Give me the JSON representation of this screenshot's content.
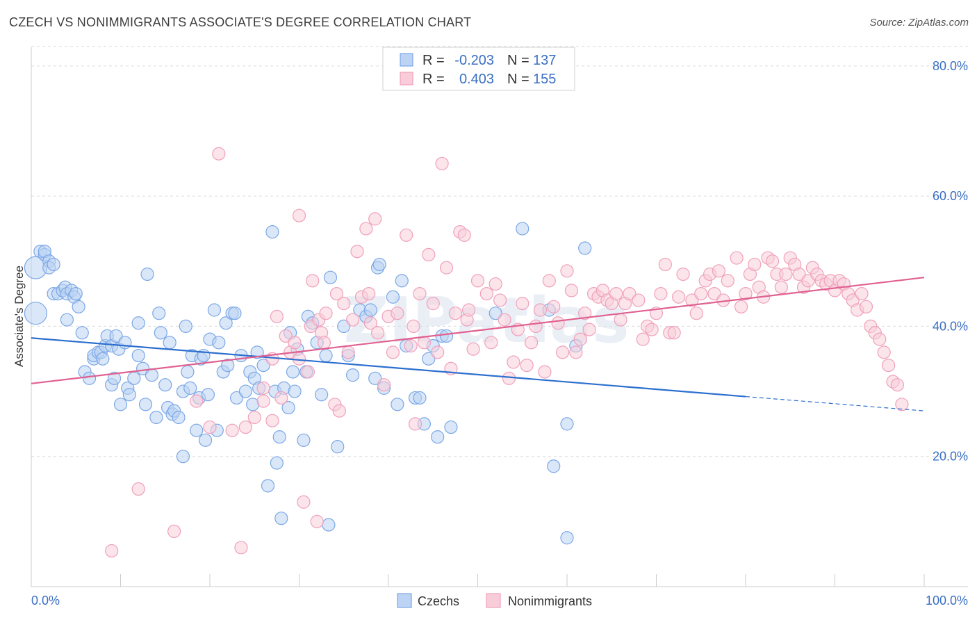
{
  "title": "CZECH VS NONIMMIGRANTS ASSOCIATE'S DEGREE CORRELATION CHART",
  "source": "Source: ZipAtlas.com",
  "watermark": "ZIPatlas",
  "chart_data": {
    "type": "scatter",
    "ylabel": "Associate's Degree",
    "xlim": [
      0,
      100
    ],
    "ylim": [
      0,
      85
    ],
    "x_tick_labels": [
      "0.0%",
      "100.0%"
    ],
    "y_ticks": [
      20,
      40,
      60,
      80
    ],
    "y_tick_labels": [
      "20.0%",
      "40.0%",
      "60.0%",
      "80.0%"
    ],
    "grid": "horizontal dashed",
    "legend": {
      "position": "top-center",
      "rows": [
        {
          "r_label": "R =",
          "r_value": "-0.203",
          "n_label": "N =",
          "n_value": "137"
        },
        {
          "r_label": "R =",
          "r_value": "0.403",
          "n_label": "N =",
          "n_value": "155"
        }
      ]
    },
    "series": [
      {
        "name": "Czechs",
        "color": "#7ba7e6",
        "fill": "#bcd3f3",
        "trend": {
          "x0": 0,
          "y0": 38.2,
          "x1": 80,
          "y1": 29.2,
          "dash_to_x": 100,
          "dash_to_y": 27.0,
          "color": "#2c6fcf"
        },
        "points": [
          [
            0.5,
            42
          ],
          [
            0.5,
            49
          ],
          [
            1,
            51.5
          ],
          [
            1.5,
            51
          ],
          [
            1.5,
            51.5
          ],
          [
            2,
            50
          ],
          [
            2,
            49
          ],
          [
            2.5,
            45
          ],
          [
            2.5,
            49.5
          ],
          [
            3,
            45
          ],
          [
            3.5,
            45.5
          ],
          [
            3.8,
            46
          ],
          [
            4,
            45
          ],
          [
            4.5,
            45.5
          ],
          [
            4.8,
            44.5
          ],
          [
            5,
            45
          ],
          [
            5.3,
            43
          ],
          [
            4,
            41
          ],
          [
            5.7,
            39
          ],
          [
            6,
            33
          ],
          [
            6.5,
            32
          ],
          [
            7,
            35
          ],
          [
            7,
            35.5
          ],
          [
            7.5,
            36
          ],
          [
            7.8,
            36
          ],
          [
            8,
            35
          ],
          [
            8.3,
            37
          ],
          [
            8.5,
            38.5
          ],
          [
            9,
            37
          ],
          [
            9,
            31
          ],
          [
            9.3,
            32
          ],
          [
            9.5,
            38.5
          ],
          [
            9.8,
            36.5
          ],
          [
            10,
            28
          ],
          [
            10.5,
            37.5
          ],
          [
            10.8,
            30.5
          ],
          [
            11,
            29.5
          ],
          [
            11.5,
            32
          ],
          [
            12,
            35.5
          ],
          [
            12,
            40.5
          ],
          [
            12.5,
            33.5
          ],
          [
            12.8,
            28
          ],
          [
            13,
            48
          ],
          [
            13.5,
            32.5
          ],
          [
            14,
            26
          ],
          [
            14.3,
            42
          ],
          [
            14.5,
            39
          ],
          [
            15,
            31
          ],
          [
            15.3,
            27.5
          ],
          [
            15.5,
            37.5
          ],
          [
            15.8,
            26.5
          ],
          [
            16,
            27
          ],
          [
            16.5,
            26
          ],
          [
            17,
            20
          ],
          [
            17,
            30
          ],
          [
            17.3,
            40
          ],
          [
            17.5,
            33
          ],
          [
            17.8,
            30.5
          ],
          [
            18,
            35.5
          ],
          [
            18.5,
            24
          ],
          [
            18.8,
            29
          ],
          [
            19,
            35
          ],
          [
            19.3,
            35.5
          ],
          [
            19.5,
            22.5
          ],
          [
            19.8,
            29.5
          ],
          [
            20,
            38
          ],
          [
            20.5,
            42.5
          ],
          [
            20.8,
            24
          ],
          [
            21,
            37.5
          ],
          [
            21.5,
            33
          ],
          [
            21.8,
            40.5
          ],
          [
            22,
            34
          ],
          [
            22.5,
            42
          ],
          [
            22.8,
            42
          ],
          [
            23,
            29
          ],
          [
            23.5,
            35.5
          ],
          [
            24,
            30
          ],
          [
            24.5,
            33
          ],
          [
            24.8,
            28
          ],
          [
            25,
            32
          ],
          [
            25.3,
            36
          ],
          [
            25.5,
            30.5
          ],
          [
            26,
            34
          ],
          [
            26.5,
            15.5
          ],
          [
            27,
            54.5
          ],
          [
            27.3,
            30
          ],
          [
            27.5,
            19
          ],
          [
            27.8,
            23
          ],
          [
            28,
            10.5
          ],
          [
            28.3,
            30.5
          ],
          [
            28.8,
            27.5
          ],
          [
            29,
            39
          ],
          [
            29.3,
            33
          ],
          [
            29.5,
            30
          ],
          [
            29.8,
            36.5
          ],
          [
            30.5,
            22.5
          ],
          [
            30.8,
            33
          ],
          [
            31,
            41.5
          ],
          [
            31.5,
            40.5
          ],
          [
            32,
            37.5
          ],
          [
            32.5,
            29.5
          ],
          [
            33,
            35.5
          ],
          [
            33.3,
            9.5
          ],
          [
            33.5,
            47.5
          ],
          [
            34.3,
            21.5
          ],
          [
            35,
            40
          ],
          [
            35.5,
            35.5
          ],
          [
            36,
            32.5
          ],
          [
            36.8,
            42.5
          ],
          [
            37.5,
            41.5
          ],
          [
            38,
            42.5
          ],
          [
            38.5,
            32
          ],
          [
            38.8,
            49
          ],
          [
            39,
            49.5
          ],
          [
            39.5,
            30.5
          ],
          [
            40.5,
            44.5
          ],
          [
            41,
            28
          ],
          [
            41.5,
            47
          ],
          [
            42,
            37
          ],
          [
            43,
            29
          ],
          [
            43.5,
            29
          ],
          [
            44,
            25
          ],
          [
            44.5,
            35
          ],
          [
            45,
            37
          ],
          [
            45.5,
            23
          ],
          [
            46,
            38.5
          ],
          [
            46.5,
            38.5
          ],
          [
            47,
            24.5
          ],
          [
            52,
            42
          ],
          [
            55,
            55
          ],
          [
            58,
            42.5
          ],
          [
            58.5,
            18.5
          ],
          [
            60,
            7.5
          ],
          [
            60,
            25
          ],
          [
            61,
            37
          ],
          [
            62,
            52
          ]
        ]
      },
      {
        "name": "Nonimmigrants",
        "color": "#f0a0bc",
        "fill": "#f8cdd9",
        "trend": {
          "x0": 0,
          "y0": 31.2,
          "x1": 100,
          "y1": 47.5,
          "color": "#e06090"
        },
        "points": [
          [
            9,
            5.5
          ],
          [
            12,
            15
          ],
          [
            16,
            8.5
          ],
          [
            18.5,
            28.5
          ],
          [
            20,
            24.5
          ],
          [
            21,
            66.5
          ],
          [
            22.5,
            24
          ],
          [
            23.5,
            6
          ],
          [
            24,
            24.5
          ],
          [
            25,
            26
          ],
          [
            26,
            28.5
          ],
          [
            26,
            30.5
          ],
          [
            27,
            25.5
          ],
          [
            27,
            35
          ],
          [
            28,
            29
          ],
          [
            27.5,
            41.5
          ],
          [
            28.5,
            38.5
          ],
          [
            29,
            36
          ],
          [
            29.5,
            37.5
          ],
          [
            30,
            57
          ],
          [
            30.5,
            13
          ],
          [
            30,
            35
          ],
          [
            31,
            33
          ],
          [
            31.3,
            40
          ],
          [
            31.5,
            47
          ],
          [
            32,
            10
          ],
          [
            32.2,
            41
          ],
          [
            32.5,
            39
          ],
          [
            32.8,
            37.5
          ],
          [
            33,
            42
          ],
          [
            34,
            28
          ],
          [
            34.2,
            45
          ],
          [
            34.5,
            27
          ],
          [
            35,
            43.5
          ],
          [
            35.5,
            36
          ],
          [
            36,
            41
          ],
          [
            36.5,
            51.5
          ],
          [
            37,
            44.5
          ],
          [
            37.5,
            55
          ],
          [
            37.8,
            45
          ],
          [
            38,
            40.5
          ],
          [
            38.5,
            56.5
          ],
          [
            38.8,
            39
          ],
          [
            39.5,
            31
          ],
          [
            40,
            41.5
          ],
          [
            40.5,
            36
          ],
          [
            41,
            42
          ],
          [
            42,
            54
          ],
          [
            42.5,
            37
          ],
          [
            42.8,
            40
          ],
          [
            43,
            25
          ],
          [
            43.5,
            45
          ],
          [
            44,
            37.5
          ],
          [
            44.5,
            51
          ],
          [
            45,
            43.5
          ],
          [
            45.5,
            36
          ],
          [
            46,
            65
          ],
          [
            46.5,
            49
          ],
          [
            47,
            33.5
          ],
          [
            47.5,
            42
          ],
          [
            48,
            54.5
          ],
          [
            48.5,
            54
          ],
          [
            48.8,
            41
          ],
          [
            49,
            42.5
          ],
          [
            49.5,
            36.5
          ],
          [
            50,
            47
          ],
          [
            51,
            45
          ],
          [
            51.5,
            37.5
          ],
          [
            52,
            46.5
          ],
          [
            52.5,
            44
          ],
          [
            53,
            41
          ],
          [
            53.5,
            32
          ],
          [
            54,
            34.5
          ],
          [
            54.5,
            39.5
          ],
          [
            55,
            43.5
          ],
          [
            55.5,
            34
          ],
          [
            56,
            37.5
          ],
          [
            56.5,
            40
          ],
          [
            57,
            42.5
          ],
          [
            57.5,
            33
          ],
          [
            58,
            47
          ],
          [
            58.5,
            43
          ],
          [
            59,
            40.5
          ],
          [
            59.5,
            36
          ],
          [
            60,
            48.5
          ],
          [
            60.5,
            45.5
          ],
          [
            61,
            36
          ],
          [
            61.5,
            38
          ],
          [
            62,
            42
          ],
          [
            62.5,
            39.5
          ],
          [
            63,
            45
          ],
          [
            63.5,
            44.5
          ],
          [
            64,
            45.5
          ],
          [
            64.5,
            44
          ],
          [
            65,
            43.5
          ],
          [
            65.5,
            45
          ],
          [
            66,
            41
          ],
          [
            66.5,
            43.5
          ],
          [
            67,
            45
          ],
          [
            68,
            44
          ],
          [
            68.5,
            38
          ],
          [
            69,
            40
          ],
          [
            69.5,
            39.5
          ],
          [
            70,
            42
          ],
          [
            70.5,
            45
          ],
          [
            71,
            49.5
          ],
          [
            71.5,
            39
          ],
          [
            72,
            39
          ],
          [
            72.5,
            44.5
          ],
          [
            73,
            48
          ],
          [
            74,
            44
          ],
          [
            74.5,
            42
          ],
          [
            75,
            45
          ],
          [
            75.5,
            47
          ],
          [
            76,
            48
          ],
          [
            76.5,
            45
          ],
          [
            77,
            48.5
          ],
          [
            77.5,
            44
          ],
          [
            78,
            47
          ],
          [
            79,
            50.5
          ],
          [
            79.5,
            43
          ],
          [
            80,
            45
          ],
          [
            80.5,
            48
          ],
          [
            81,
            49.5
          ],
          [
            81.5,
            46
          ],
          [
            82,
            44.5
          ],
          [
            82.5,
            50.5
          ],
          [
            83,
            50
          ],
          [
            83.5,
            48
          ],
          [
            84,
            46
          ],
          [
            84.5,
            48
          ],
          [
            85,
            50.5
          ],
          [
            85.5,
            49.5
          ],
          [
            86,
            48
          ],
          [
            86.5,
            46
          ],
          [
            87,
            47
          ],
          [
            87.5,
            49
          ],
          [
            88,
            48
          ],
          [
            88.5,
            47
          ],
          [
            89,
            46.5
          ],
          [
            89.5,
            47
          ],
          [
            90,
            45.5
          ],
          [
            90.5,
            47
          ],
          [
            91,
            46.5
          ],
          [
            91.5,
            45
          ],
          [
            92,
            44
          ],
          [
            92.5,
            42.5
          ],
          [
            93,
            45
          ],
          [
            93.5,
            43
          ],
          [
            94,
            40
          ],
          [
            94.5,
            39
          ],
          [
            95,
            38
          ],
          [
            95.5,
            36
          ],
          [
            96,
            34
          ],
          [
            96.5,
            31.5
          ],
          [
            97,
            31
          ],
          [
            97.5,
            28
          ]
        ]
      }
    ]
  }
}
